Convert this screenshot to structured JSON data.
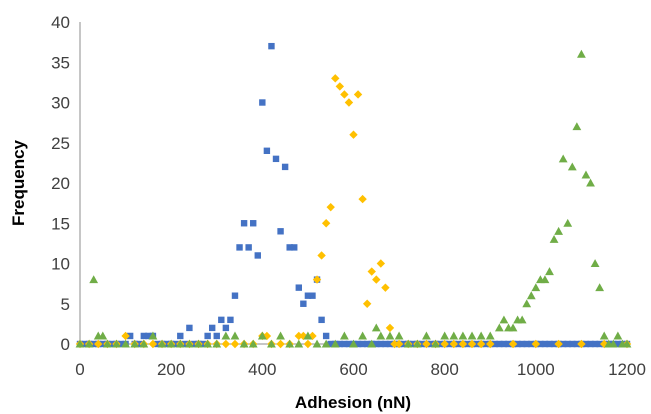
{
  "chart_data": {
    "type": "scatter",
    "title": "",
    "xlabel": "Adhesion (nN)",
    "ylabel": "Frequency",
    "xlim": [
      0,
      1200
    ],
    "ylim": [
      0,
      40
    ],
    "xticks": [
      "0",
      "200",
      "400",
      "600",
      "800",
      "1000",
      "1200"
    ],
    "yticks": [
      "0",
      "5",
      "10",
      "15",
      "20",
      "25",
      "30",
      "35",
      "40"
    ],
    "grid": false,
    "legend": "none",
    "series": [
      {
        "marker": "square",
        "color": "#4472C4",
        "points": [
          [
            0,
            0
          ],
          [
            10,
            0
          ],
          [
            20,
            0
          ],
          [
            30,
            0
          ],
          [
            40,
            0
          ],
          [
            50,
            0
          ],
          [
            60,
            0
          ],
          [
            70,
            0
          ],
          [
            80,
            0
          ],
          [
            90,
            0
          ],
          [
            100,
            0
          ],
          [
            110,
            1
          ],
          [
            120,
            0
          ],
          [
            130,
            0
          ],
          [
            140,
            1
          ],
          [
            150,
            1
          ],
          [
            160,
            1
          ],
          [
            170,
            0
          ],
          [
            180,
            0
          ],
          [
            190,
            0
          ],
          [
            200,
            0
          ],
          [
            210,
            0
          ],
          [
            220,
            1
          ],
          [
            230,
            0
          ],
          [
            240,
            2
          ],
          [
            250,
            0
          ],
          [
            260,
            0
          ],
          [
            270,
            0
          ],
          [
            280,
            1
          ],
          [
            290,
            2
          ],
          [
            300,
            1
          ],
          [
            310,
            3
          ],
          [
            320,
            2
          ],
          [
            330,
            3
          ],
          [
            340,
            6
          ],
          [
            350,
            12
          ],
          [
            360,
            15
          ],
          [
            370,
            12
          ],
          [
            380,
            15
          ],
          [
            390,
            11
          ],
          [
            400,
            30
          ],
          [
            410,
            24
          ],
          [
            420,
            37
          ],
          [
            430,
            23
          ],
          [
            440,
            14
          ],
          [
            450,
            22
          ],
          [
            460,
            12
          ],
          [
            470,
            12
          ],
          [
            480,
            7
          ],
          [
            490,
            5
          ],
          [
            500,
            6
          ],
          [
            510,
            6
          ],
          [
            520,
            8
          ],
          [
            530,
            3
          ],
          [
            540,
            1
          ],
          [
            550,
            0
          ],
          [
            560,
            0
          ],
          [
            570,
            0
          ],
          [
            580,
            0
          ],
          [
            590,
            0
          ],
          [
            600,
            0
          ],
          [
            610,
            0
          ],
          [
            620,
            0
          ],
          [
            630,
            0
          ],
          [
            640,
            0
          ],
          [
            650,
            0
          ],
          [
            660,
            0
          ],
          [
            670,
            0
          ],
          [
            680,
            0
          ],
          [
            690,
            0
          ],
          [
            700,
            0
          ],
          [
            710,
            0
          ],
          [
            720,
            0
          ],
          [
            730,
            0
          ],
          [
            740,
            0
          ],
          [
            750,
            0
          ],
          [
            760,
            0
          ],
          [
            770,
            0
          ],
          [
            780,
            0
          ],
          [
            790,
            0
          ],
          [
            800,
            0
          ],
          [
            810,
            0
          ],
          [
            820,
            0
          ],
          [
            830,
            0
          ],
          [
            840,
            0
          ],
          [
            850,
            0
          ],
          [
            860,
            0
          ],
          [
            870,
            0
          ],
          [
            880,
            0
          ],
          [
            890,
            0
          ],
          [
            900,
            0
          ],
          [
            910,
            0
          ],
          [
            920,
            0
          ],
          [
            930,
            0
          ],
          [
            940,
            0
          ],
          [
            950,
            0
          ],
          [
            960,
            0
          ],
          [
            970,
            0
          ],
          [
            980,
            0
          ],
          [
            990,
            0
          ],
          [
            1000,
            0
          ],
          [
            1010,
            0
          ],
          [
            1020,
            0
          ],
          [
            1030,
            0
          ],
          [
            1040,
            0
          ],
          [
            1050,
            0
          ],
          [
            1060,
            0
          ],
          [
            1070,
            0
          ],
          [
            1080,
            0
          ],
          [
            1090,
            0
          ],
          [
            1100,
            0
          ],
          [
            1110,
            0
          ],
          [
            1120,
            0
          ],
          [
            1130,
            0
          ],
          [
            1140,
            0
          ],
          [
            1150,
            0
          ],
          [
            1160,
            0
          ],
          [
            1170,
            0
          ],
          [
            1180,
            0
          ],
          [
            1190,
            0
          ],
          [
            1200,
            0
          ]
        ]
      },
      {
        "marker": "diamond",
        "color": "#FFC000",
        "points": [
          [
            0,
            0
          ],
          [
            20,
            0
          ],
          [
            40,
            0
          ],
          [
            60,
            0
          ],
          [
            80,
            0
          ],
          [
            100,
            1
          ],
          [
            120,
            0
          ],
          [
            140,
            0
          ],
          [
            160,
            0
          ],
          [
            180,
            0
          ],
          [
            200,
            0
          ],
          [
            220,
            0
          ],
          [
            240,
            0
          ],
          [
            260,
            0
          ],
          [
            280,
            0
          ],
          [
            300,
            0
          ],
          [
            320,
            0
          ],
          [
            340,
            0
          ],
          [
            360,
            0
          ],
          [
            380,
            0
          ],
          [
            400,
            1
          ],
          [
            410,
            1
          ],
          [
            420,
            0
          ],
          [
            440,
            0
          ],
          [
            460,
            0
          ],
          [
            480,
            1
          ],
          [
            490,
            1
          ],
          [
            500,
            0
          ],
          [
            510,
            1
          ],
          [
            520,
            8
          ],
          [
            530,
            11
          ],
          [
            540,
            15
          ],
          [
            550,
            17
          ],
          [
            560,
            33
          ],
          [
            570,
            32
          ],
          [
            580,
            31
          ],
          [
            590,
            30
          ],
          [
            600,
            26
          ],
          [
            610,
            31
          ],
          [
            620,
            18
          ],
          [
            630,
            5
          ],
          [
            640,
            9
          ],
          [
            650,
            8
          ],
          [
            660,
            10
          ],
          [
            670,
            7
          ],
          [
            680,
            2
          ],
          [
            690,
            0
          ],
          [
            700,
            0
          ],
          [
            720,
            0
          ],
          [
            740,
            0
          ],
          [
            760,
            0
          ],
          [
            780,
            0
          ],
          [
            800,
            0
          ],
          [
            820,
            0
          ],
          [
            840,
            0
          ],
          [
            860,
            0
          ],
          [
            880,
            0
          ],
          [
            900,
            0
          ],
          [
            950,
            0
          ],
          [
            1000,
            0
          ],
          [
            1050,
            0
          ],
          [
            1100,
            0
          ],
          [
            1150,
            0
          ],
          [
            1200,
            0
          ]
        ]
      },
      {
        "marker": "triangle",
        "color": "#70AD47",
        "points": [
          [
            0,
            0
          ],
          [
            20,
            0
          ],
          [
            30,
            8
          ],
          [
            40,
            1
          ],
          [
            50,
            1
          ],
          [
            60,
            0
          ],
          [
            80,
            0
          ],
          [
            100,
            0
          ],
          [
            120,
            0
          ],
          [
            140,
            0
          ],
          [
            160,
            1
          ],
          [
            180,
            0
          ],
          [
            200,
            0
          ],
          [
            220,
            0
          ],
          [
            240,
            0
          ],
          [
            260,
            0
          ],
          [
            280,
            0
          ],
          [
            300,
            0
          ],
          [
            320,
            1
          ],
          [
            340,
            1
          ],
          [
            360,
            0
          ],
          [
            380,
            0
          ],
          [
            400,
            1
          ],
          [
            420,
            0
          ],
          [
            440,
            1
          ],
          [
            460,
            0
          ],
          [
            480,
            0
          ],
          [
            500,
            1
          ],
          [
            520,
            0
          ],
          [
            540,
            0
          ],
          [
            560,
            0
          ],
          [
            580,
            1
          ],
          [
            600,
            0
          ],
          [
            620,
            1
          ],
          [
            640,
            0
          ],
          [
            650,
            2
          ],
          [
            660,
            1
          ],
          [
            680,
            1
          ],
          [
            700,
            1
          ],
          [
            720,
            0
          ],
          [
            740,
            0
          ],
          [
            760,
            1
          ],
          [
            780,
            0
          ],
          [
            800,
            1
          ],
          [
            820,
            1
          ],
          [
            840,
            1
          ],
          [
            860,
            1
          ],
          [
            880,
            1
          ],
          [
            900,
            1
          ],
          [
            920,
            2
          ],
          [
            930,
            3
          ],
          [
            940,
            2
          ],
          [
            950,
            2
          ],
          [
            960,
            3
          ],
          [
            970,
            3
          ],
          [
            980,
            5
          ],
          [
            990,
            6
          ],
          [
            1000,
            7
          ],
          [
            1010,
            8
          ],
          [
            1020,
            8
          ],
          [
            1030,
            9
          ],
          [
            1040,
            13
          ],
          [
            1050,
            14
          ],
          [
            1060,
            23
          ],
          [
            1070,
            15
          ],
          [
            1080,
            22
          ],
          [
            1090,
            27
          ],
          [
            1100,
            36
          ],
          [
            1110,
            21
          ],
          [
            1120,
            20
          ],
          [
            1130,
            10
          ],
          [
            1140,
            7
          ],
          [
            1150,
            1
          ],
          [
            1160,
            0
          ],
          [
            1170,
            0
          ],
          [
            1180,
            1
          ],
          [
            1190,
            0
          ],
          [
            1200,
            0
          ]
        ]
      }
    ]
  }
}
